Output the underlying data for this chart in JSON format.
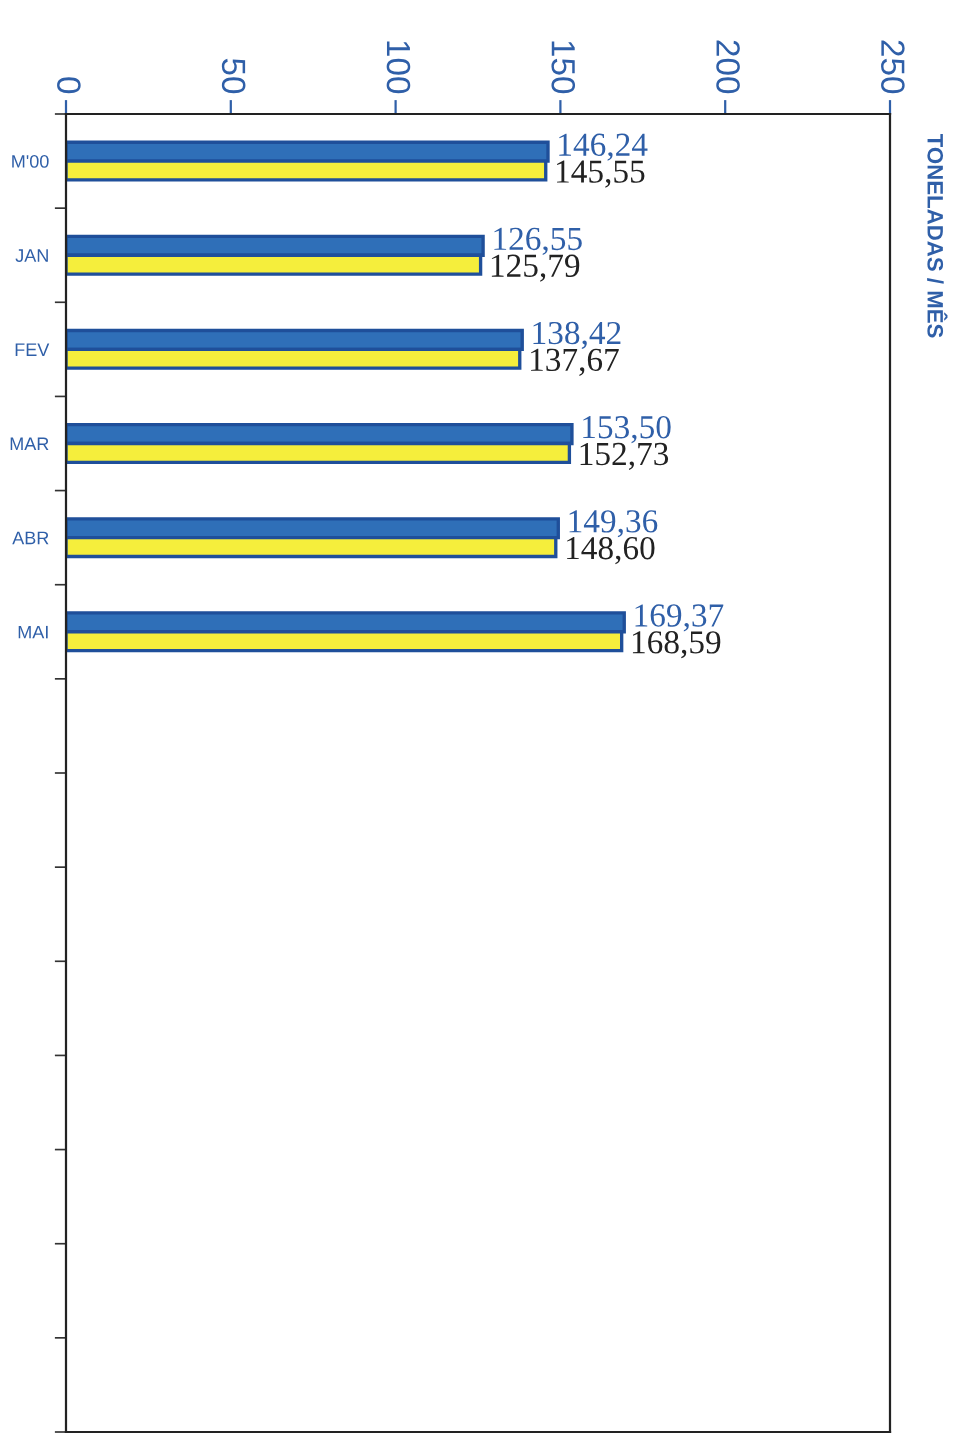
{
  "chart_data": {
    "type": "bar",
    "orientation": "horizontal",
    "ylabel": "TONELADAS / MÊS",
    "categories": [
      "M'00",
      "JAN",
      "FEV",
      "MAR",
      "ABR",
      "MAI",
      null,
      null,
      null,
      null,
      null,
      null,
      null,
      null
    ],
    "series": [
      {
        "color": "#2f6fb8",
        "values": [
          146.24,
          126.55,
          138.42,
          153.5,
          149.36,
          169.37,
          null,
          null,
          null,
          null,
          null,
          null,
          null,
          null
        ],
        "value_labels": [
          "146,24",
          "126,55",
          "138,42",
          "153,50",
          "149,36",
          "169,37",
          null,
          null,
          null,
          null,
          null,
          null,
          null,
          null
        ]
      },
      {
        "color": "#f5ee3c",
        "values": [
          145.55,
          125.79,
          137.67,
          152.73,
          148.6,
          168.59,
          null,
          null,
          null,
          null,
          null,
          null,
          null,
          null
        ],
        "value_labels": [
          "145,55",
          "125,79",
          "137,67",
          "152,73",
          "148,60",
          "168,59",
          null,
          null,
          null,
          null,
          null,
          null,
          null,
          null
        ]
      }
    ],
    "xlim": [
      0,
      250
    ],
    "xticks": [
      0,
      50,
      100,
      150,
      200,
      250
    ],
    "grid": false,
    "legend": false
  }
}
